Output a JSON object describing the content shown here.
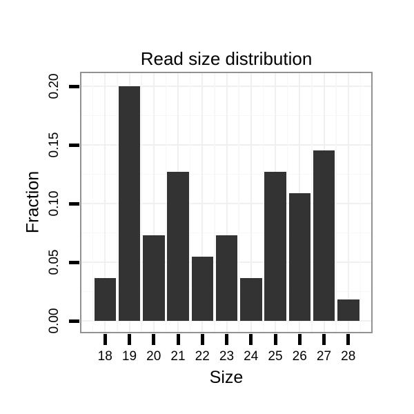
{
  "chart_data": {
    "type": "bar",
    "title": "Read size distribution",
    "xlabel": "Size",
    "ylabel": "Fraction",
    "categories": [
      "18",
      "19",
      "20",
      "21",
      "22",
      "23",
      "24",
      "25",
      "26",
      "27",
      "28"
    ],
    "values": [
      0.0364,
      0.2,
      0.0727,
      0.1273,
      0.0545,
      0.0727,
      0.0364,
      0.1273,
      0.1091,
      0.1455,
      0.0182
    ],
    "yticks": [
      0.0,
      0.05,
      0.1,
      0.15,
      0.2
    ],
    "ytick_labels": [
      "0.00",
      "0.05",
      "0.10",
      "0.15",
      "0.20"
    ],
    "ylim": [
      -0.0106,
      0.2124
    ],
    "grid": "on",
    "legend_position": "none",
    "colors": {
      "bar_fill": "#333333",
      "panel_border": "#919191",
      "grid_major": "#f0f0f0",
      "grid_minor": "#f7f7f7",
      "tick": "#000000",
      "text": "#000000",
      "background": "#ffffff"
    }
  }
}
